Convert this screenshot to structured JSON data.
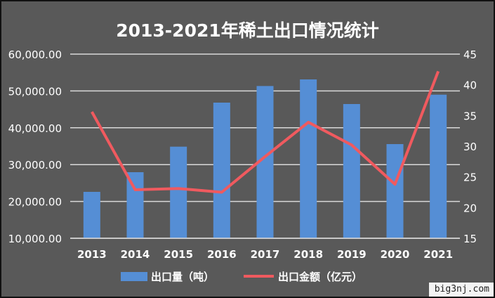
{
  "chart_data": {
    "type": "bar+line",
    "title": "2013-2021年稀土出口情况统计",
    "categories": [
      "2013",
      "2014",
      "2015",
      "2016",
      "2017",
      "2018",
      "2019",
      "2020",
      "2021"
    ],
    "series": [
      {
        "name": "出口量（吨）",
        "type": "bar",
        "axis": "left",
        "color": "#558ed5",
        "values": [
          22600,
          27940,
          34870,
          46830,
          51340,
          53130,
          46450,
          35570,
          48990
        ]
      },
      {
        "name": "出口金额（亿元）",
        "type": "line",
        "axis": "right",
        "color": "#f05a5f",
        "values": [
          35.6,
          22.9,
          23.1,
          22.5,
          28.3,
          33.9,
          30.2,
          23.8,
          42.2
        ]
      }
    ],
    "y_left": {
      "range": [
        10000,
        60000
      ],
      "ticks": [
        "10,000.00",
        "20,000.00",
        "30,000.00",
        "40,000.00",
        "50,000.00",
        "60,000.00"
      ]
    },
    "y_right": {
      "range": [
        15,
        45
      ],
      "ticks": [
        "15",
        "20",
        "25",
        "30",
        "35",
        "40",
        "45"
      ]
    },
    "grid": true,
    "legend": "bottom"
  },
  "watermark": "big3nj.com"
}
